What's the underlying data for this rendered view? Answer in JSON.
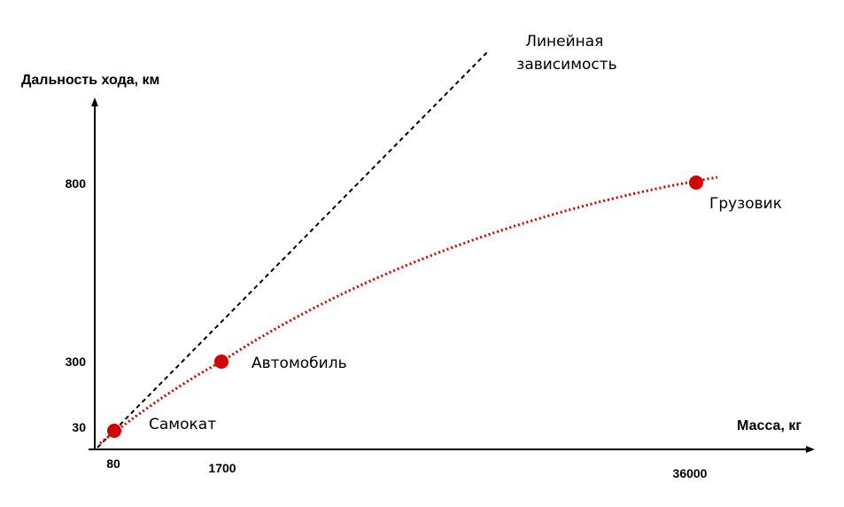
{
  "chart_data": {
    "type": "scatter",
    "xlabel": "Масса, кг",
    "ylabel": "Дальность хода, км",
    "x_ticks": [
      "80",
      "1700",
      "36000"
    ],
    "y_ticks": [
      "30",
      "300",
      "800"
    ],
    "points": [
      {
        "label": "Самокат",
        "x": 80,
        "y": 30
      },
      {
        "label": "Автомобиль",
        "x": 1700,
        "y": 300
      },
      {
        "label": "Грузовик",
        "x": 36000,
        "y": 800
      }
    ],
    "reference_line": {
      "label_lines": [
        "Линейная",
        "зависимость"
      ],
      "style": "dashed"
    },
    "trend": {
      "style": "dotted"
    },
    "colors": {
      "points": "#d40000",
      "trend": "#d40000",
      "reference": "#000000",
      "axes": "#000000"
    }
  }
}
